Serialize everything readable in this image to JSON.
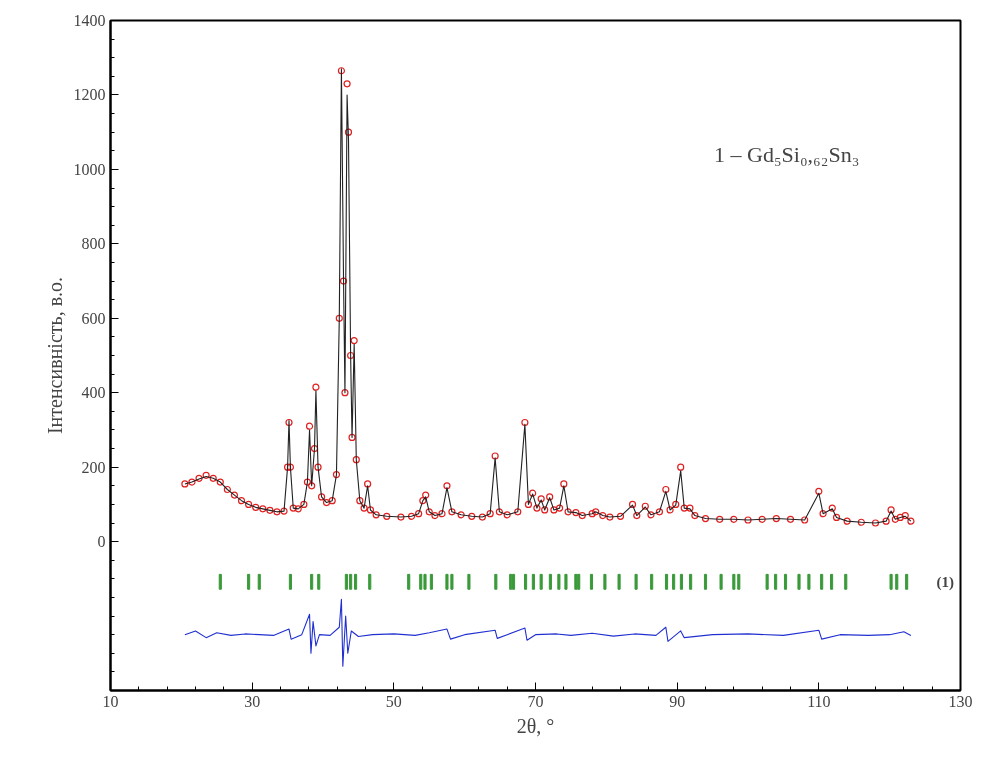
{
  "chart_data": {
    "type": "scatter",
    "xlabel": "2θ, °",
    "ylabel": "Інтенсивність, в.о.",
    "xlim": [
      10,
      130
    ],
    "xticks": [
      10,
      30,
      50,
      70,
      90,
      110,
      130
    ],
    "ylim": [
      -400,
      1400
    ],
    "yticks": [
      0,
      200,
      400,
      600,
      800,
      1000,
      1200,
      1400
    ],
    "annotations": [
      "1 – Gd₅Si₀,₆₂Sn₃"
    ],
    "series": [
      {
        "marker": "circle",
        "color": "#e02020",
        "x": [
          20.5,
          21.5,
          22.5,
          23.5,
          24.5,
          25.5,
          26.5,
          27.5,
          28.5,
          29.5,
          30.5,
          31.5,
          32.5,
          33.5,
          34.5,
          35.0,
          35.2,
          35.4,
          35.8,
          36.5,
          37.3,
          37.8,
          38.1,
          38.4,
          38.8,
          39.0,
          39.3,
          39.8,
          40.5,
          41.3,
          41.9,
          42.3,
          42.6,
          42.9,
          43.1,
          43.4,
          43.6,
          43.9,
          44.1,
          44.4,
          44.7,
          45.2,
          45.8,
          46.3,
          46.7,
          47.5,
          49,
          51,
          52.5,
          53.5,
          54.1,
          54.5,
          55.0,
          55.8,
          56.8,
          57.5,
          58.2,
          59.5,
          61,
          62.5,
          63.6,
          64.3,
          64.9,
          66,
          67.5,
          68.5,
          69.0,
          69.6,
          70.2,
          70.8,
          71.3,
          72.0,
          72.6,
          73.4,
          74.0,
          74.6,
          75.7,
          76.6,
          78.0,
          78.5,
          79.5,
          80.5,
          82,
          83.7,
          84.3,
          85.5,
          86.3,
          87.5,
          88.4,
          89.0,
          89.8,
          90.5,
          91.0,
          91.8,
          92.5,
          94,
          96,
          98,
          100,
          102,
          104,
          106,
          108,
          110,
          110.6,
          111.9,
          112.5,
          114,
          116,
          118,
          119.5,
          120.2,
          120.8,
          121.5,
          122.2,
          123
        ],
        "values": [
          155,
          160,
          170,
          178,
          170,
          160,
          140,
          125,
          110,
          100,
          92,
          88,
          84,
          80,
          82,
          200,
          320,
          200,
          90,
          88,
          100,
          160,
          310,
          150,
          250,
          415,
          200,
          120,
          105,
          110,
          180,
          600,
          1265,
          700,
          400,
          1230,
          1100,
          500,
          280,
          540,
          220,
          110,
          90,
          155,
          85,
          72,
          68,
          66,
          68,
          75,
          110,
          125,
          80,
          70,
          75,
          150,
          80,
          72,
          68,
          66,
          75,
          230,
          80,
          72,
          80,
          320,
          100,
          130,
          90,
          115,
          85,
          120,
          85,
          90,
          155,
          80,
          78,
          70,
          75,
          80,
          70,
          66,
          68,
          100,
          70,
          95,
          72,
          80,
          140,
          85,
          100,
          200,
          90,
          90,
          70,
          62,
          60,
          60,
          58,
          60,
          62,
          60,
          58,
          135,
          75,
          90,
          65,
          55,
          52,
          50,
          55,
          85,
          60,
          65,
          70,
          55
        ]
      },
      {
        "type": "line",
        "line_style": "solid",
        "color": "#222222",
        "x": [
          20.5,
          21.5,
          22.5,
          23.5,
          24.5,
          25.5,
          26.5,
          27.5,
          28.5,
          29.5,
          30.5,
          31.5,
          32.5,
          33.5,
          34.5,
          35.0,
          35.2,
          35.4,
          35.8,
          36.5,
          37.3,
          37.8,
          38.1,
          38.4,
          38.8,
          39.0,
          39.3,
          39.8,
          40.5,
          41.3,
          41.9,
          42.3,
          42.6,
          42.9,
          43.1,
          43.4,
          43.6,
          43.9,
          44.1,
          44.4,
          44.7,
          45.2,
          45.8,
          46.3,
          46.7,
          47.5,
          49,
          51,
          52.5,
          53.5,
          54.1,
          54.5,
          55.0,
          55.8,
          56.8,
          57.5,
          58.2,
          59.5,
          61,
          62.5,
          63.6,
          64.3,
          64.9,
          66,
          67.5,
          68.5,
          69.0,
          69.6,
          70.2,
          70.8,
          71.3,
          72.0,
          72.6,
          73.4,
          74.0,
          74.6,
          75.7,
          76.6,
          78.0,
          78.5,
          79.5,
          80.5,
          82,
          83.7,
          84.3,
          85.5,
          86.3,
          87.5,
          88.4,
          89.0,
          89.8,
          90.5,
          91.0,
          91.8,
          92.5,
          94,
          96,
          98,
          100,
          102,
          104,
          106,
          108,
          110,
          110.6,
          111.9,
          112.5,
          114,
          116,
          118,
          119.5,
          120.2,
          120.8,
          121.5,
          122.2,
          123
        ],
        "values": [
          155,
          160,
          168,
          175,
          170,
          160,
          140,
          125,
          110,
          100,
          92,
          88,
          84,
          80,
          82,
          200,
          325,
          200,
          90,
          88,
          100,
          160,
          300,
          150,
          250,
          405,
          200,
          120,
          105,
          110,
          180,
          600,
          1270,
          700,
          400,
          1200,
          1080,
          500,
          280,
          530,
          220,
          110,
          90,
          150,
          85,
          72,
          68,
          66,
          68,
          75,
          110,
          120,
          80,
          70,
          75,
          145,
          80,
          72,
          68,
          66,
          75,
          225,
          80,
          72,
          80,
          315,
          100,
          128,
          90,
          112,
          85,
          118,
          85,
          90,
          150,
          80,
          78,
          70,
          75,
          80,
          70,
          66,
          68,
          98,
          70,
          93,
          72,
          80,
          135,
          85,
          98,
          190,
          90,
          88,
          70,
          62,
          60,
          60,
          58,
          60,
          62,
          60,
          58,
          130,
          75,
          88,
          65,
          55,
          52,
          50,
          55,
          82,
          60,
          65,
          68,
          55
        ]
      },
      {
        "type": "bar",
        "name": "(1)",
        "color": "#3a9a3a",
        "x": [
          25.5,
          29.5,
          31.0,
          35.4,
          38.4,
          39.4,
          43.3,
          43.9,
          44.6,
          46.6,
          52.1,
          53.8,
          54.4,
          55.3,
          57.5,
          58.2,
          60.6,
          64.4,
          66.5,
          66.9,
          68.6,
          69.7,
          70.8,
          72.1,
          73.3,
          74.3,
          75.7,
          76.1,
          77.9,
          79.8,
          81.8,
          84.2,
          86.4,
          88.5,
          89.5,
          90.6,
          91.9,
          94.0,
          96.2,
          98.0,
          98.7,
          102.7,
          103.9,
          105.3,
          107.2,
          108.6,
          110.4,
          111.8,
          113.8,
          120.2,
          121.0,
          122.4
        ],
        "base": [
          -128,
          -128,
          -128,
          -128,
          -128,
          -128,
          -128,
          -128,
          -128,
          -128,
          -128,
          -128,
          -128,
          -128,
          -128,
          -128,
          -128,
          -128,
          -128,
          -128,
          -128,
          -128,
          -128,
          -128,
          -128,
          -128,
          -128,
          -128,
          -128,
          -128,
          -128,
          -128,
          -128,
          -128,
          -128,
          -128,
          -128,
          -128,
          -128,
          -128,
          -128,
          -128,
          -128,
          -128,
          -128,
          -128,
          -128,
          -128,
          -128,
          -128,
          -128,
          -128
        ],
        "values": [
          40,
          40,
          40,
          40,
          40,
          40,
          40,
          40,
          40,
          40,
          40,
          40,
          40,
          40,
          40,
          40,
          40,
          40,
          40,
          40,
          40,
          40,
          40,
          40,
          40,
          40,
          40,
          40,
          40,
          40,
          40,
          40,
          40,
          40,
          40,
          40,
          40,
          40,
          40,
          40,
          40,
          40,
          40,
          40,
          40,
          40,
          40,
          40,
          40,
          40,
          40,
          40
        ]
      },
      {
        "type": "line",
        "line_style": "solid",
        "color": "#2030d0",
        "x": [
          20.5,
          22,
          23.5,
          25,
          27,
          29,
          31,
          33,
          35.2,
          35.5,
          37,
          38.1,
          38.3,
          38.6,
          39,
          39.5,
          41,
          42.3,
          42.6,
          42.8,
          43.2,
          43.5,
          44,
          45,
          47,
          50,
          53,
          55,
          57.5,
          58,
          60,
          64.3,
          64.6,
          66,
          68.5,
          68.8,
          70,
          73,
          75,
          78,
          81,
          84,
          87,
          88.4,
          88.7,
          90.5,
          91,
          95,
          100,
          105,
          110,
          110.4,
          113,
          117,
          120,
          122,
          123
        ],
        "values": [
          -250,
          -240,
          -258,
          -245,
          -252,
          -248,
          -250,
          -252,
          -235,
          -262,
          -250,
          -195,
          -300,
          -215,
          -280,
          -250,
          -252,
          -230,
          -155,
          -335,
          -200,
          -300,
          -240,
          -255,
          -250,
          -248,
          -252,
          -245,
          -235,
          -262,
          -250,
          -238,
          -260,
          -250,
          -232,
          -265,
          -250,
          -248,
          -252,
          -246,
          -254,
          -248,
          -252,
          -230,
          -268,
          -240,
          -258,
          -250,
          -248,
          -252,
          -238,
          -262,
          -250,
          -252,
          -250,
          -242,
          -252
        ]
      }
    ]
  }
}
